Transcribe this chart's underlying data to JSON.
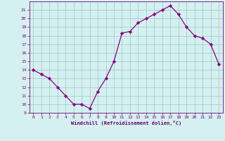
{
  "x": [
    0,
    1,
    2,
    3,
    4,
    5,
    6,
    7,
    8,
    9,
    10,
    11,
    12,
    13,
    14,
    15,
    16,
    17,
    18,
    19,
    20,
    21,
    22,
    23
  ],
  "y": [
    14.0,
    13.5,
    13.0,
    12.0,
    11.0,
    10.0,
    10.0,
    9.5,
    11.5,
    13.0,
    15.0,
    18.3,
    18.5,
    19.5,
    20.0,
    20.5,
    21.0,
    21.5,
    20.5,
    19.0,
    18.0,
    17.7,
    17.0,
    14.7
  ],
  "line_color": "#880088",
  "marker": "D",
  "marker_size": 2.2,
  "bg_color": "#d4f0f0",
  "grid_color": "#aacccc",
  "xlabel": "Windchill (Refroidissement éolien,°C)",
  "xlim": [
    -0.5,
    23.5
  ],
  "ylim": [
    9,
    22
  ],
  "xticks": [
    0,
    1,
    2,
    3,
    4,
    5,
    6,
    7,
    8,
    9,
    10,
    11,
    12,
    13,
    14,
    15,
    16,
    17,
    18,
    19,
    20,
    21,
    22,
    23
  ],
  "yticks": [
    9,
    10,
    11,
    12,
    13,
    14,
    15,
    16,
    17,
    18,
    19,
    20,
    21
  ],
  "tick_color": "#770077",
  "xlabel_color": "#660066"
}
